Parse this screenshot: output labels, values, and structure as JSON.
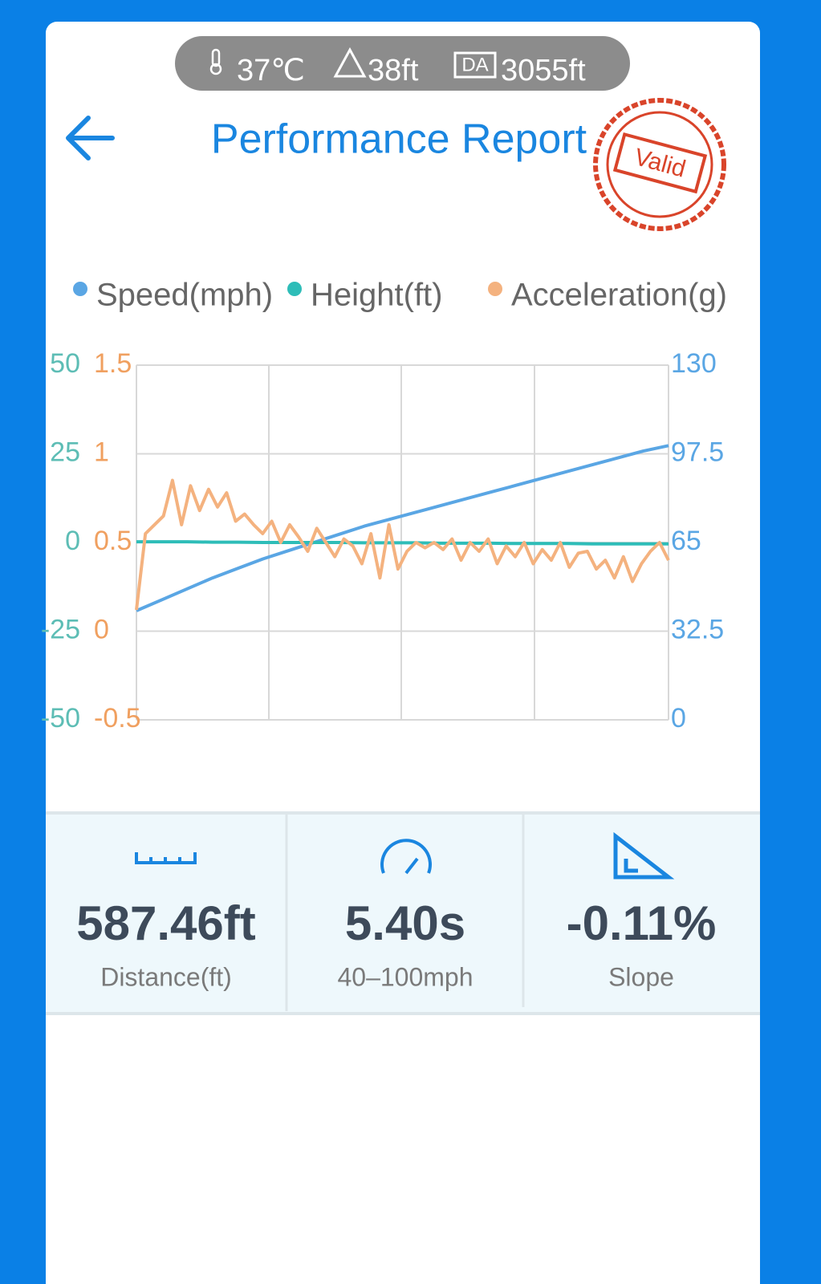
{
  "status": {
    "temperature": "37℃",
    "altitude": "38ft",
    "da_label": "DA",
    "density_altitude": "3055ft"
  },
  "header": {
    "title": "Performance Report",
    "stamp": "Valid"
  },
  "chart_data": {
    "type": "line",
    "series": [
      {
        "name": "Speed(mph)",
        "color": "#5aa6e4",
        "axis": "y2",
        "values": [
          40,
          44,
          48,
          52,
          55.5,
          59,
          62,
          65,
          68,
          71,
          73.5,
          76,
          78.5,
          81,
          83.5,
          86,
          88.5,
          91,
          93.5,
          96,
          98.5,
          100.5
        ]
      },
      {
        "name": "Height(ft)",
        "color": "#2ebdb8",
        "axis": "y",
        "values": [
          0.2,
          0.2,
          0.2,
          0.1,
          0.1,
          0,
          0,
          0,
          0,
          -0.1,
          -0.1,
          -0.1,
          -0.2,
          -0.2,
          -0.2,
          -0.3,
          -0.3,
          -0.3,
          -0.4,
          -0.4,
          -0.4,
          -0.4
        ]
      },
      {
        "name": "Acceleration(g)",
        "color": "#f4b27f",
        "axis": "y3",
        "values": [
          0.12,
          0.55,
          0.6,
          0.65,
          0.85,
          0.6,
          0.82,
          0.68,
          0.8,
          0.7,
          0.78,
          0.62,
          0.66,
          0.6,
          0.55,
          0.62,
          0.5,
          0.6,
          0.53,
          0.45,
          0.58,
          0.5,
          0.42,
          0.52,
          0.48,
          0.38,
          0.55,
          0.3,
          0.6,
          0.35,
          0.45,
          0.5,
          0.47,
          0.5,
          0.46,
          0.52,
          0.4,
          0.5,
          0.45,
          0.52,
          0.38,
          0.48,
          0.42,
          0.5,
          0.38,
          0.46,
          0.4,
          0.5,
          0.36,
          0.44,
          0.45,
          0.35,
          0.4,
          0.3,
          0.42,
          0.28,
          0.38,
          0.45,
          0.5,
          0.4
        ]
      }
    ],
    "ylim": [
      -50,
      50
    ],
    "yticks": [
      -50,
      -25,
      0,
      25,
      50
    ],
    "ycolor": "#5dbdb5",
    "y3lim": [
      -0.5,
      1.5
    ],
    "y3ticks": [
      -0.5,
      0,
      0.5,
      1,
      1.5
    ],
    "y3color": "#f0a060",
    "y2lim": [
      0,
      130
    ],
    "y2ticks": [
      0,
      32.5,
      65,
      97.5,
      130
    ],
    "y2color": "#5aa6e4",
    "grid": true
  },
  "stats": [
    {
      "value": "587.46ft",
      "label": "Distance(ft)"
    },
    {
      "value": "5.40s",
      "label": "40–100mph"
    },
    {
      "value": "-0.11%",
      "label": "Slope"
    }
  ]
}
